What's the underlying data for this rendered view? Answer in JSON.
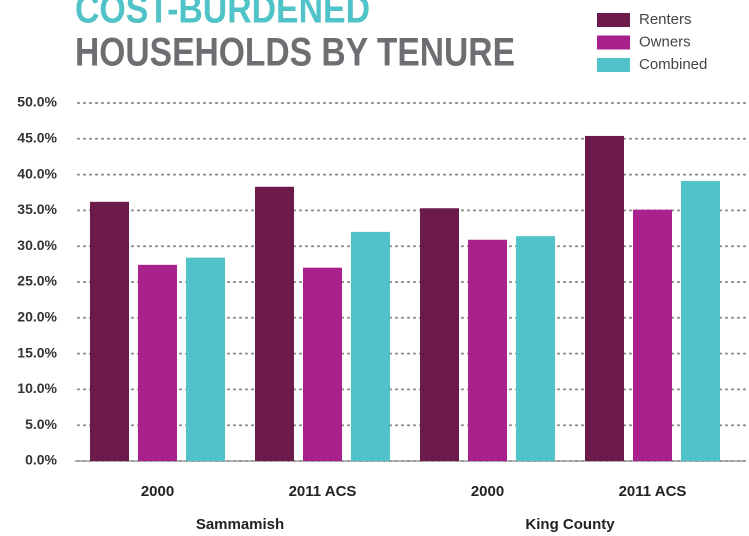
{
  "chart_data": {
    "type": "bar",
    "title": [
      "COST-BURDENED",
      "HOUSEHOLDS BY TENURE"
    ],
    "categories": [
      "2000",
      "2011 ACS",
      "2000",
      "2011 ACS"
    ],
    "group_labels": [
      "Sammamish",
      "King County"
    ],
    "series": [
      {
        "name": "Renters",
        "color": "#6b1a4a",
        "values": [
          36.2,
          38.3,
          35.3,
          45.4
        ]
      },
      {
        "name": "Owners",
        "color": "#a8218c",
        "values": [
          27.4,
          27.0,
          30.9,
          35.1
        ]
      },
      {
        "name": "Combined",
        "color": "#4fc3c8",
        "values": [
          28.4,
          32.0,
          31.4,
          39.1
        ]
      }
    ],
    "ylim": [
      0,
      50
    ],
    "yticks": [
      {
        "value": 0,
        "label": "0.0%"
      },
      {
        "value": 5,
        "label": "5.0%"
      },
      {
        "value": 10,
        "label": "10.0%"
      },
      {
        "value": 15,
        "label": "15.0%"
      },
      {
        "value": 20,
        "label": "20.0%"
      },
      {
        "value": 25,
        "label": "25.0%"
      },
      {
        "value": 30,
        "label": "30.0%"
      },
      {
        "value": 35,
        "label": "35.0%"
      },
      {
        "value": 40,
        "label": "40.0%"
      },
      {
        "value": 45,
        "label": "45.0%"
      },
      {
        "value": 50,
        "label": "50.0%"
      }
    ],
    "grid": true,
    "legend": "top-right"
  }
}
